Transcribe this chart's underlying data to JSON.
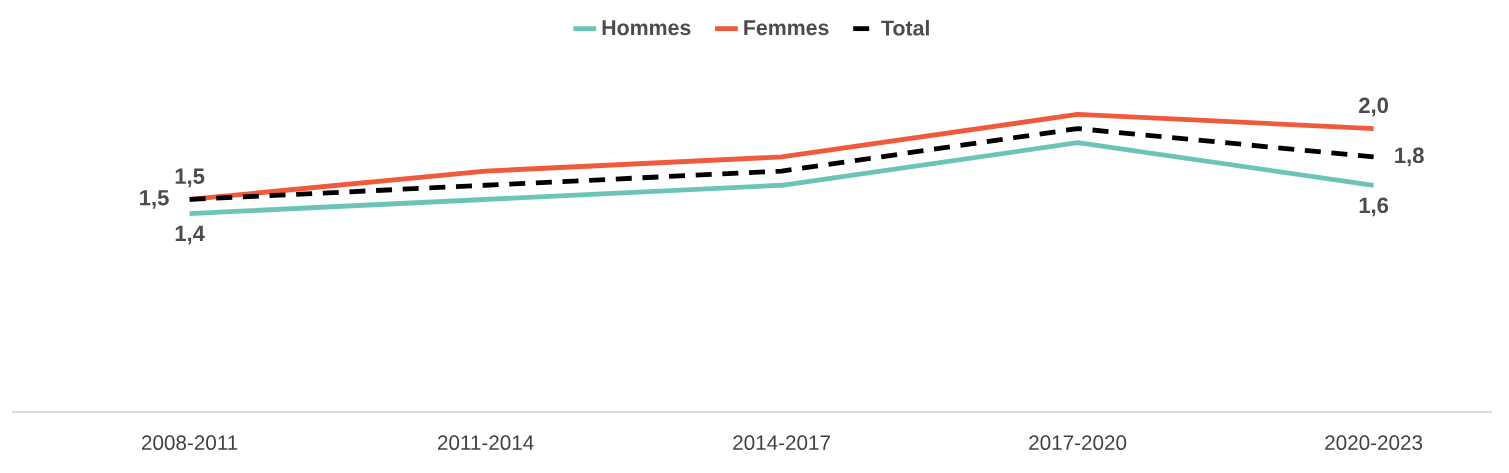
{
  "chart_data": {
    "type": "line",
    "categories": [
      "2008-2011",
      "2011-2014",
      "2014-2017",
      "2017-2020",
      "2020-2023"
    ],
    "series": [
      {
        "name": "Hommes",
        "color": "#6cc4b8",
        "values": [
          1.4,
          1.5,
          1.6,
          1.9,
          1.6
        ],
        "value_labels": [
          "1,4",
          null,
          null,
          null,
          "1,6"
        ]
      },
      {
        "name": "Femmes",
        "color": "#ef5a3c",
        "values": [
          1.5,
          1.7,
          1.8,
          2.1,
          2.0
        ],
        "value_labels": [
          "1,5",
          null,
          null,
          null,
          "2,0"
        ]
      },
      {
        "name": "Total",
        "color": "#000000",
        "line_style": "dashed",
        "values": [
          1.5,
          1.6,
          1.7,
          2.0,
          1.8
        ],
        "value_labels": [
          "1,5",
          null,
          null,
          null,
          "1,8"
        ]
      }
    ],
    "legend": "top",
    "marker": "none",
    "tick_labels": "x"
  }
}
